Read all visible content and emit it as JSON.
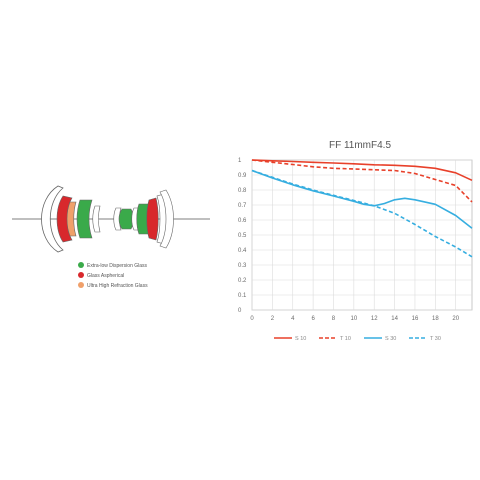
{
  "lens_legend": [
    {
      "label": "Extra-low Dispersion Glass",
      "color": "#3aaa4a"
    },
    {
      "label": "Glass Aspherical",
      "color": "#d8282c"
    },
    {
      "label": "Ultra High Refraction Glass",
      "color": "#f0a06a"
    }
  ],
  "chart_data": {
    "type": "line",
    "title": "FF 11mmF4.5",
    "xlabel": "",
    "ylabel": "",
    "xlim": [
      0,
      21.6
    ],
    "ylim": [
      0,
      1
    ],
    "x_ticks": [
      "0",
      "2",
      "4",
      "6",
      "8",
      "10",
      "12",
      "14",
      "16",
      "18",
      "20"
    ],
    "y_ticks": [
      "0",
      "0.1",
      "0.2",
      "0.3",
      "0.4",
      "0.5",
      "0.6",
      "0.7",
      "0.8",
      "0.9",
      "1"
    ],
    "grid": true,
    "legend_position": "bottom",
    "series": [
      {
        "name": "S 10",
        "color": "#e8402a",
        "style": "solid",
        "x": [
          0,
          2,
          4,
          6,
          8,
          10,
          12,
          14,
          16,
          18,
          20,
          21.6
        ],
        "y": [
          1.0,
          0.995,
          0.99,
          0.985,
          0.98,
          0.975,
          0.968,
          0.965,
          0.958,
          0.945,
          0.915,
          0.865
        ]
      },
      {
        "name": "T 10",
        "color": "#e8402a",
        "style": "dashed",
        "x": [
          0,
          2,
          4,
          6,
          8,
          10,
          12,
          14,
          16,
          18,
          20,
          21.6
        ],
        "y": [
          1.0,
          0.985,
          0.97,
          0.955,
          0.945,
          0.94,
          0.935,
          0.93,
          0.91,
          0.87,
          0.83,
          0.72
        ]
      },
      {
        "name": "S 30",
        "color": "#36aee0",
        "style": "solid",
        "x": [
          0,
          2,
          4,
          6,
          8,
          10,
          11,
          12,
          13,
          14,
          15,
          16,
          18,
          20,
          21.6
        ],
        "y": [
          0.93,
          0.88,
          0.835,
          0.795,
          0.76,
          0.725,
          0.705,
          0.695,
          0.71,
          0.735,
          0.745,
          0.735,
          0.705,
          0.63,
          0.545
        ]
      },
      {
        "name": "T 30",
        "color": "#36aee0",
        "style": "dashed",
        "x": [
          0,
          2,
          4,
          6,
          8,
          10,
          12,
          14,
          16,
          18,
          20,
          21.6
        ],
        "y": [
          0.93,
          0.885,
          0.84,
          0.8,
          0.765,
          0.73,
          0.695,
          0.645,
          0.57,
          0.49,
          0.42,
          0.355
        ]
      }
    ]
  }
}
